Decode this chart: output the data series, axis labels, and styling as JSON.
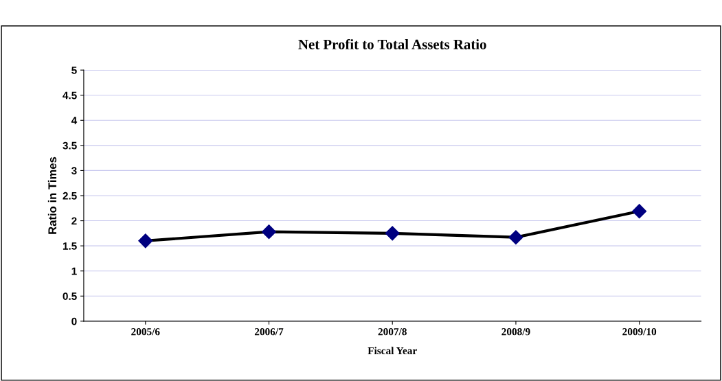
{
  "chart_data": {
    "type": "line",
    "title": "Net Profit to Total Assets Ratio",
    "xlabel": "Fiscal Year",
    "ylabel": "Ratio in Times",
    "categories": [
      "2005/6",
      "2006/7",
      "2007/8",
      "2008/9",
      "2009/10"
    ],
    "series": [
      {
        "color": "#000000",
        "values": [
          1.6,
          1.78,
          1.75,
          1.67,
          2.19
        ]
      }
    ],
    "marker": "diamond",
    "line_style": "solid",
    "ylim": [
      0,
      5
    ],
    "yticks": [
      0,
      0.5,
      1,
      1.5,
      2,
      2.5,
      3,
      3.5,
      4,
      4.5,
      5
    ],
    "grid": "y"
  }
}
